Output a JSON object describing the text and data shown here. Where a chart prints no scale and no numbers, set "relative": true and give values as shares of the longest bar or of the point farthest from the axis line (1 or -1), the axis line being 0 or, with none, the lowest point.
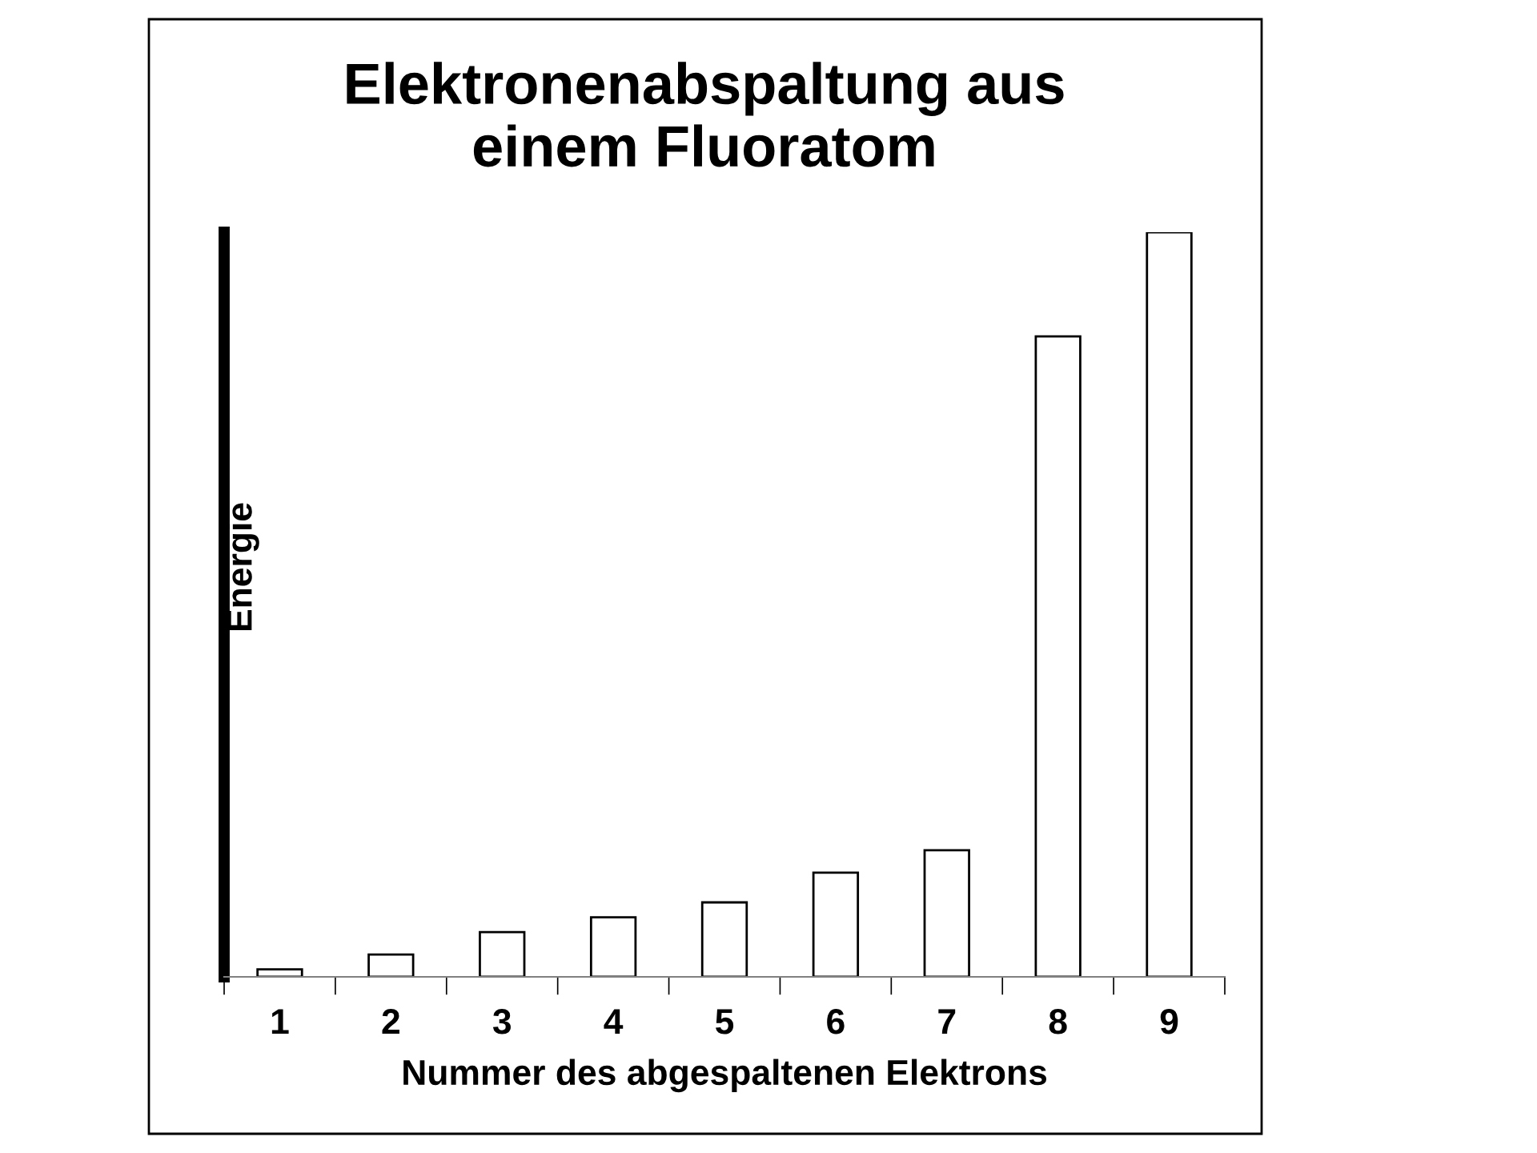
{
  "chart_data": {
    "type": "bar",
    "title": "Elektronenabspaltung aus\neinem Fluoratom",
    "xlabel": "Nummer des abgespaltenen Elektrons",
    "ylabel": "Energie",
    "categories": [
      "1",
      "2",
      "3",
      "4",
      "5",
      "6",
      "7",
      "8",
      "9"
    ],
    "values": [
      0.01,
      0.03,
      0.06,
      0.08,
      0.1,
      0.14,
      0.17,
      0.86,
      1
    ],
    "color": "#ffffff",
    "relative": true,
    "grid": false
  }
}
